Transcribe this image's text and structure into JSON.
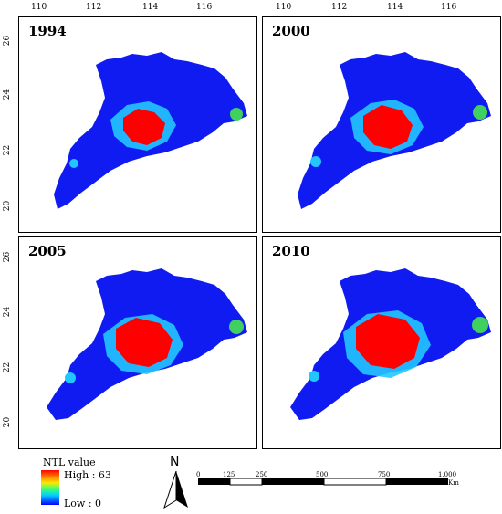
{
  "axes": {
    "lon_ticks": [
      "110",
      "112",
      "114",
      "116"
    ],
    "lat_ticks": [
      "26",
      "24",
      "22",
      "20"
    ]
  },
  "panels": [
    {
      "year": "1994"
    },
    {
      "year": "2000"
    },
    {
      "year": "2005"
    },
    {
      "year": "2010"
    }
  ],
  "legend": {
    "title": "NTL value",
    "high": "High : 63",
    "low": "Low : 0",
    "colors": [
      "#ff0000",
      "#ff7a00",
      "#ffe800",
      "#40ff70",
      "#00d0ff",
      "#0000ff"
    ]
  },
  "north_arrow": {
    "label": "N"
  },
  "scale_bar": {
    "ticks": [
      "0",
      "125",
      "250",
      "500",
      "750",
      "1,000"
    ],
    "unit": "Km"
  }
}
